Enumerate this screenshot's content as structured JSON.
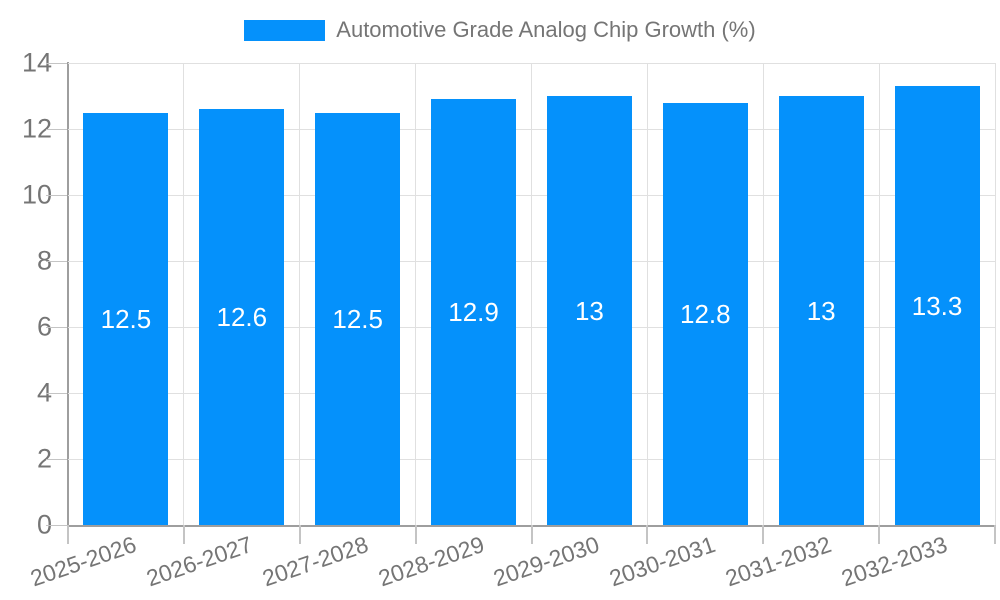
{
  "legend": {
    "label": "Automotive Grade Analog Chip Growth (%)"
  },
  "chart_data": {
    "type": "bar",
    "title": "Automotive Grade Analog Chip Growth (%)",
    "categories": [
      "2025-2026",
      "2026-2027",
      "2027-2028",
      "2028-2029",
      "2029-2030",
      "2030-2031",
      "2031-2032",
      "2032-2033"
    ],
    "values": [
      12.5,
      12.6,
      12.5,
      12.9,
      13,
      12.8,
      13,
      13.3
    ],
    "value_labels": [
      "12.5",
      "12.6",
      "12.5",
      "12.9",
      "13",
      "12.8",
      "13",
      "13.3"
    ],
    "xlabel": "",
    "ylabel": "",
    "ylim": [
      0,
      14
    ],
    "yticks": [
      0,
      2,
      4,
      6,
      8,
      10,
      12,
      14
    ],
    "grid": true,
    "legend_position": "top",
    "x_tick_rotation_deg": -19
  },
  "colors": {
    "background": "#FFFFFF",
    "bar": "#0591FB",
    "axis": "#9E9E9E",
    "gridline": "#E0E0E0",
    "tick": "#C4C4C4",
    "text": "#757575",
    "value_label": "#FFFFFF"
  }
}
